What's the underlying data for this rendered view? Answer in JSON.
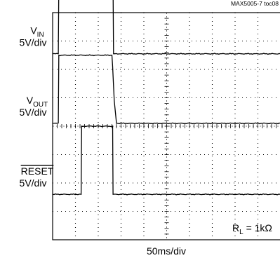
{
  "figure_id": "MAX5005-7 toc08",
  "timebase": "50ms/div",
  "annotation": {
    "base": "R",
    "sub": "L",
    "rest": " = 1kΩ"
  },
  "colors": {
    "trace": "#000000",
    "grid": "#000000",
    "frame": "#000000",
    "background": "#ffffff"
  },
  "chart_data": {
    "type": "line",
    "title": "",
    "xlabel": "50ms/div",
    "ylabel": "",
    "grid": true,
    "divisions": {
      "x": 10,
      "y": 8
    },
    "x_units": "div",
    "y_units": "V",
    "xlim": [
      0,
      10
    ],
    "series": [
      {
        "name": "VIN",
        "label": {
          "base": "V",
          "sub": "IN",
          "overline": false
        },
        "scale": "5V/div",
        "ground_div": 6.55,
        "high_div": 1.75,
        "x": [
          0,
          0.25,
          0.27,
          2.65,
          2.67,
          10
        ],
        "values": [
          0,
          0,
          12,
          12,
          0,
          0
        ]
      },
      {
        "name": "VOUT",
        "label": {
          "base": "V",
          "sub": "OUT",
          "overline": false
        },
        "scale": "5V/div",
        "ground_div": 4.1,
        "high_div": 1.7,
        "x": [
          0,
          0.25,
          0.27,
          2.6,
          2.63,
          2.7,
          2.8,
          10
        ],
        "values": [
          0,
          0,
          12,
          12,
          10,
          4,
          0,
          0
        ]
      },
      {
        "name": "RESET",
        "label": {
          "base": "RESET",
          "sub": "",
          "overline": true
        },
        "scale": "5V/div",
        "ground_div": 1.6,
        "high_div": 1.35,
        "x": [
          0,
          1.25,
          1.27,
          2.63,
          2.65,
          10
        ],
        "values": [
          0,
          0,
          12,
          12,
          0,
          0
        ]
      }
    ]
  }
}
